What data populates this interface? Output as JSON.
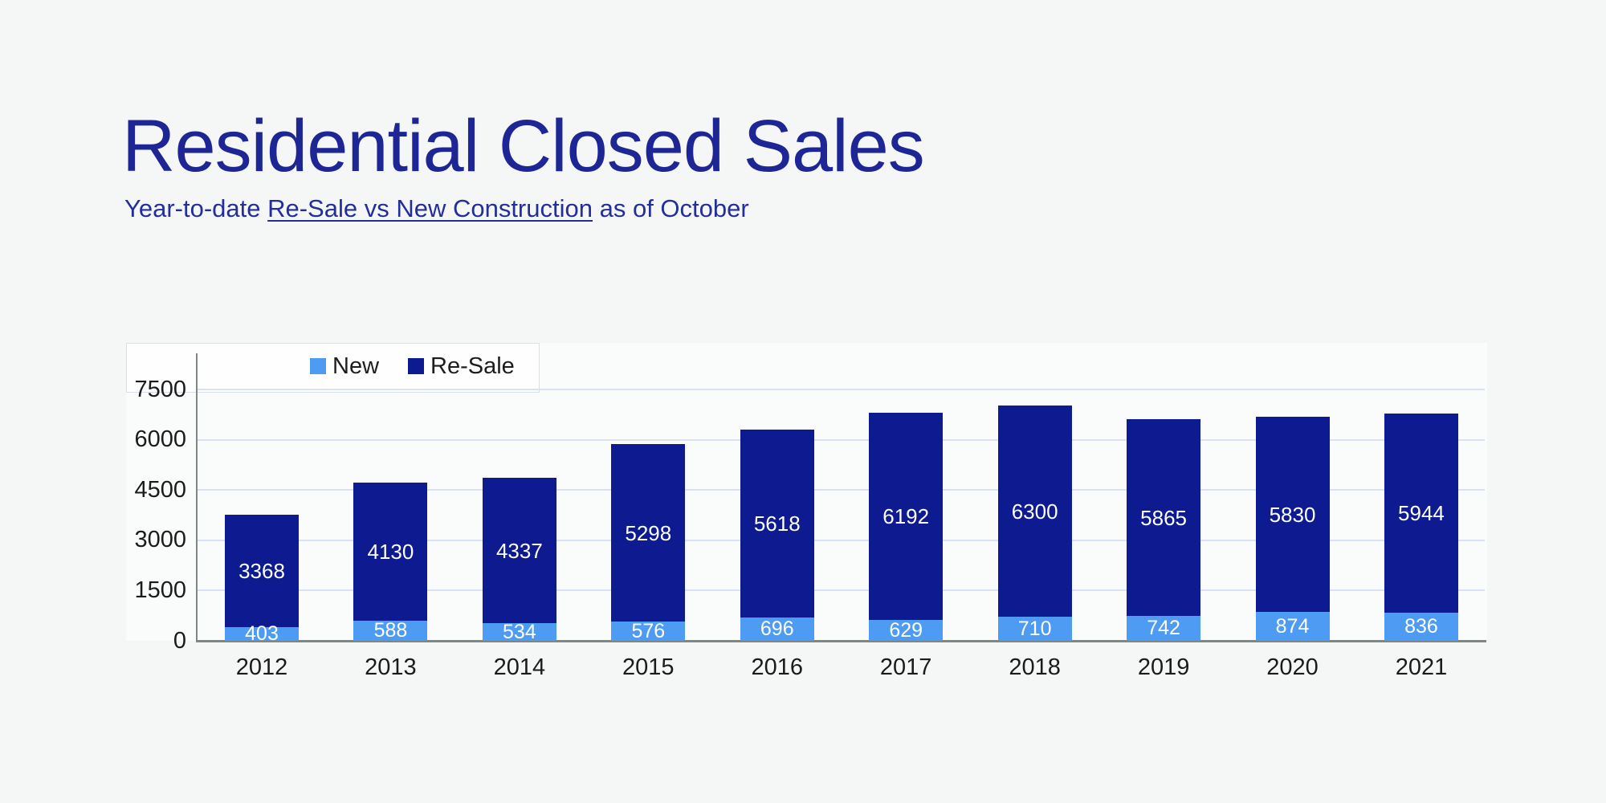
{
  "header": {
    "title": "Residential Closed Sales",
    "subtitle_prefix": "Year-to-date ",
    "subtitle_link": "Re-Sale vs New Construction",
    "subtitle_suffix": " as of October"
  },
  "colors": {
    "page_bg": "#f5f7f6",
    "plot_bg": "#fafbfb",
    "title_text": "#1e2696",
    "subtitle_text": "#232e9c",
    "new_series": "#4d9bf2",
    "resale_series": "#0e1a8f",
    "gridline": "#d8e2f3",
    "axis_line": "#7f8784",
    "tick_label": "#1b1b1b",
    "bar_value_label": "#ffffff",
    "legend_label": "#1d1d1d"
  },
  "chart_data": {
    "type": "bar",
    "stacked": true,
    "title": "Residential Closed Sales",
    "subtitle": "Year-to-date Re-Sale vs New Construction as of October",
    "categories": [
      "2012",
      "2013",
      "2014",
      "2015",
      "2016",
      "2017",
      "2018",
      "2019",
      "2020",
      "2021"
    ],
    "series": [
      {
        "name": "New",
        "color": "#4d9bf2",
        "values": [
          403,
          588,
          534,
          576,
          696,
          629,
          710,
          742,
          874,
          836
        ]
      },
      {
        "name": "Re-Sale",
        "color": "#0e1a8f",
        "values": [
          3368,
          4130,
          4337,
          5298,
          5618,
          6192,
          6300,
          5865,
          5830,
          5944
        ]
      }
    ],
    "totals": [
      3771,
      4718,
      4871,
      5874,
      6314,
      6821,
      7010,
      6607,
      6704,
      6780
    ],
    "y_ticks": [
      0,
      1500,
      3000,
      4500,
      6000,
      7500
    ],
    "ylim": [
      0,
      8900
    ],
    "xlabel": "",
    "ylabel": "",
    "grid": "horizontal",
    "legend_position": "top-left-inside",
    "value_labels": "inside-segments-white"
  }
}
